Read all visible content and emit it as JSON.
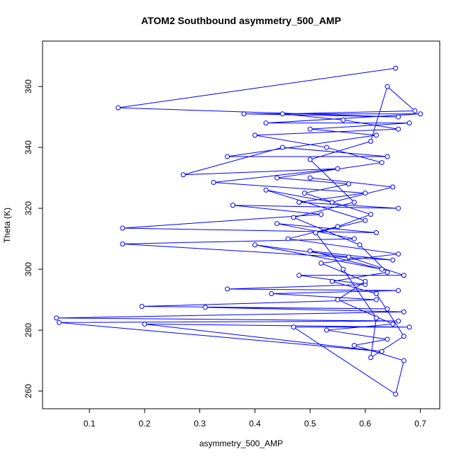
{
  "chart_data": {
    "type": "line",
    "title": "ATOM2 Southbound asymmetry_500_AMP",
    "xlabel": "asymmetry_500_AMP",
    "ylabel": "Theta (K)",
    "x": [
      0.655,
      0.152,
      0.66,
      0.38,
      0.7,
      0.42,
      0.68,
      0.5,
      0.62,
      0.35,
      0.64,
      0.45,
      0.27,
      0.55,
      0.325,
      0.6,
      0.48,
      0.66,
      0.36,
      0.52,
      0.16,
      0.62,
      0.44,
      0.58,
      0.16,
      0.65,
      0.5,
      0.63,
      0.4,
      0.57,
      0.67,
      0.48,
      0.6,
      0.35,
      0.66,
      0.43,
      0.62,
      0.195,
      0.64,
      0.31,
      0.67,
      0.04,
      0.66,
      0.045,
      0.63,
      0.2,
      0.68,
      0.47,
      0.655,
      0.67,
      0.58,
      0.64,
      0.53,
      0.65,
      0.55,
      0.6,
      0.52,
      0.66,
      0.46,
      0.55,
      0.61,
      0.49,
      0.57,
      0.44,
      0.63,
      0.53,
      0.4,
      0.66,
      0.56,
      0.45,
      0.69,
      0.64,
      0.61,
      0.5,
      0.58,
      0.47,
      0.59,
      0.64,
      0.54,
      0.62,
      0.67,
      0.61,
      0.62,
      0.56,
      0.51,
      0.6,
      0.42,
      0.54,
      0.65,
      0.5
    ],
    "series": [
      {
        "name": "Theta",
        "color": "#0000ff",
        "values": [
          366,
          353,
          350,
          351,
          351,
          348,
          348,
          346,
          344,
          337,
          337,
          340,
          331,
          333,
          328.5,
          325,
          322,
          320,
          321,
          318,
          313.5,
          312,
          315,
          310,
          308.3,
          303,
          306,
          300,
          308,
          304,
          298,
          298,
          295,
          293.5,
          293,
          292,
          290,
          287.8,
          287,
          287.5,
          286,
          284,
          283,
          282.5,
          273,
          282,
          281,
          281,
          259,
          270,
          275,
          277,
          280,
          282,
          290,
          296,
          302,
          305,
          310,
          314,
          318,
          325,
          328,
          330,
          335,
          340,
          344,
          346,
          349,
          351,
          352,
          360,
          342,
          336,
          322,
          317,
          308,
          299,
          296,
          292,
          278,
          271,
          284,
          300,
          312,
          316,
          326,
          322,
          327,
          330
        ]
      }
    ],
    "xlim": [
      0.015,
      0.735
    ],
    "ylim": [
      254.2,
      374.9
    ],
    "xticks": [
      0.1,
      0.2,
      0.3,
      0.4,
      0.5,
      0.6,
      0.7
    ],
    "yticks": [
      260,
      280,
      300,
      320,
      340,
      360
    ]
  }
}
